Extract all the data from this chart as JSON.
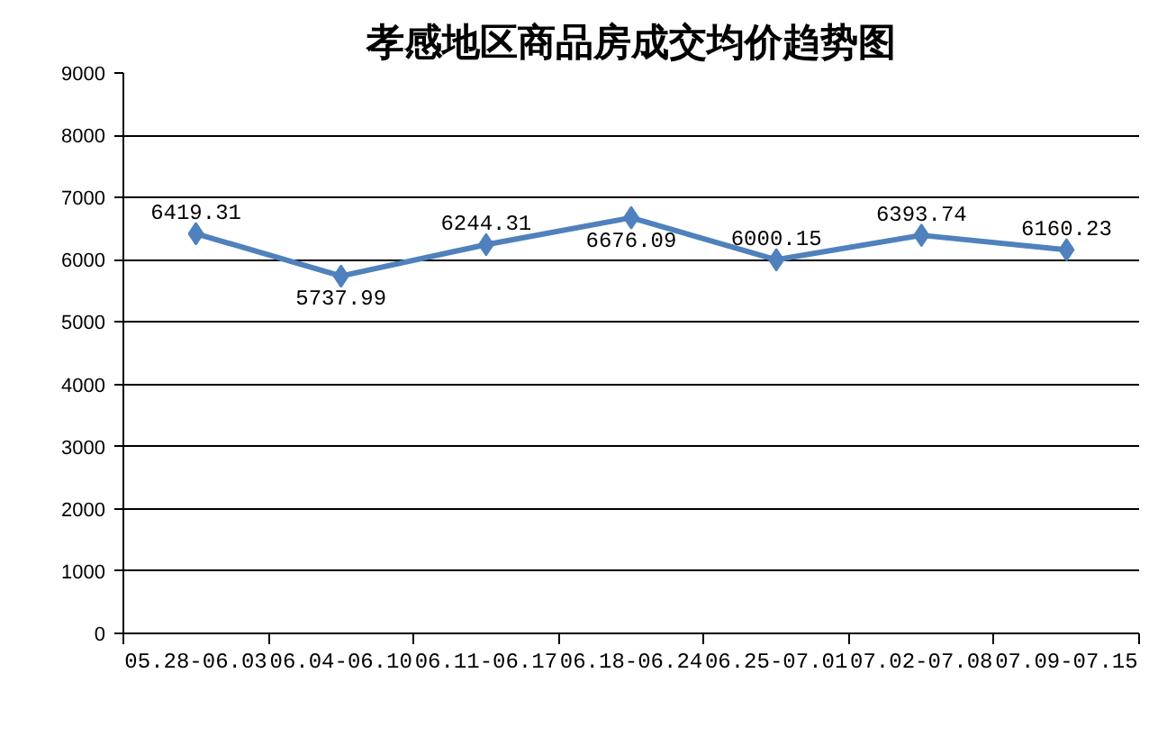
{
  "chart_data": {
    "type": "line",
    "title": "孝感地区商品房成交均价趋势图",
    "categories": [
      "05.28-06.03",
      "06.04-06.10",
      "06.11-06.17",
      "06.18-06.24",
      "06.25-07.01",
      "07.02-07.08",
      "07.09-07.15"
    ],
    "series": [
      {
        "color": "#4f81bd",
        "values": [
          6419.31,
          5737.99,
          6244.31,
          6676.09,
          6000.15,
          6393.74,
          6160.23
        ]
      }
    ],
    "ylim": [
      0,
      9000
    ],
    "yticks": [
      0,
      1000,
      2000,
      3000,
      4000,
      5000,
      6000,
      7000,
      8000,
      9000
    ],
    "grid": "y",
    "marker": "diamond",
    "line_style": "solid",
    "data_labels": true
  }
}
